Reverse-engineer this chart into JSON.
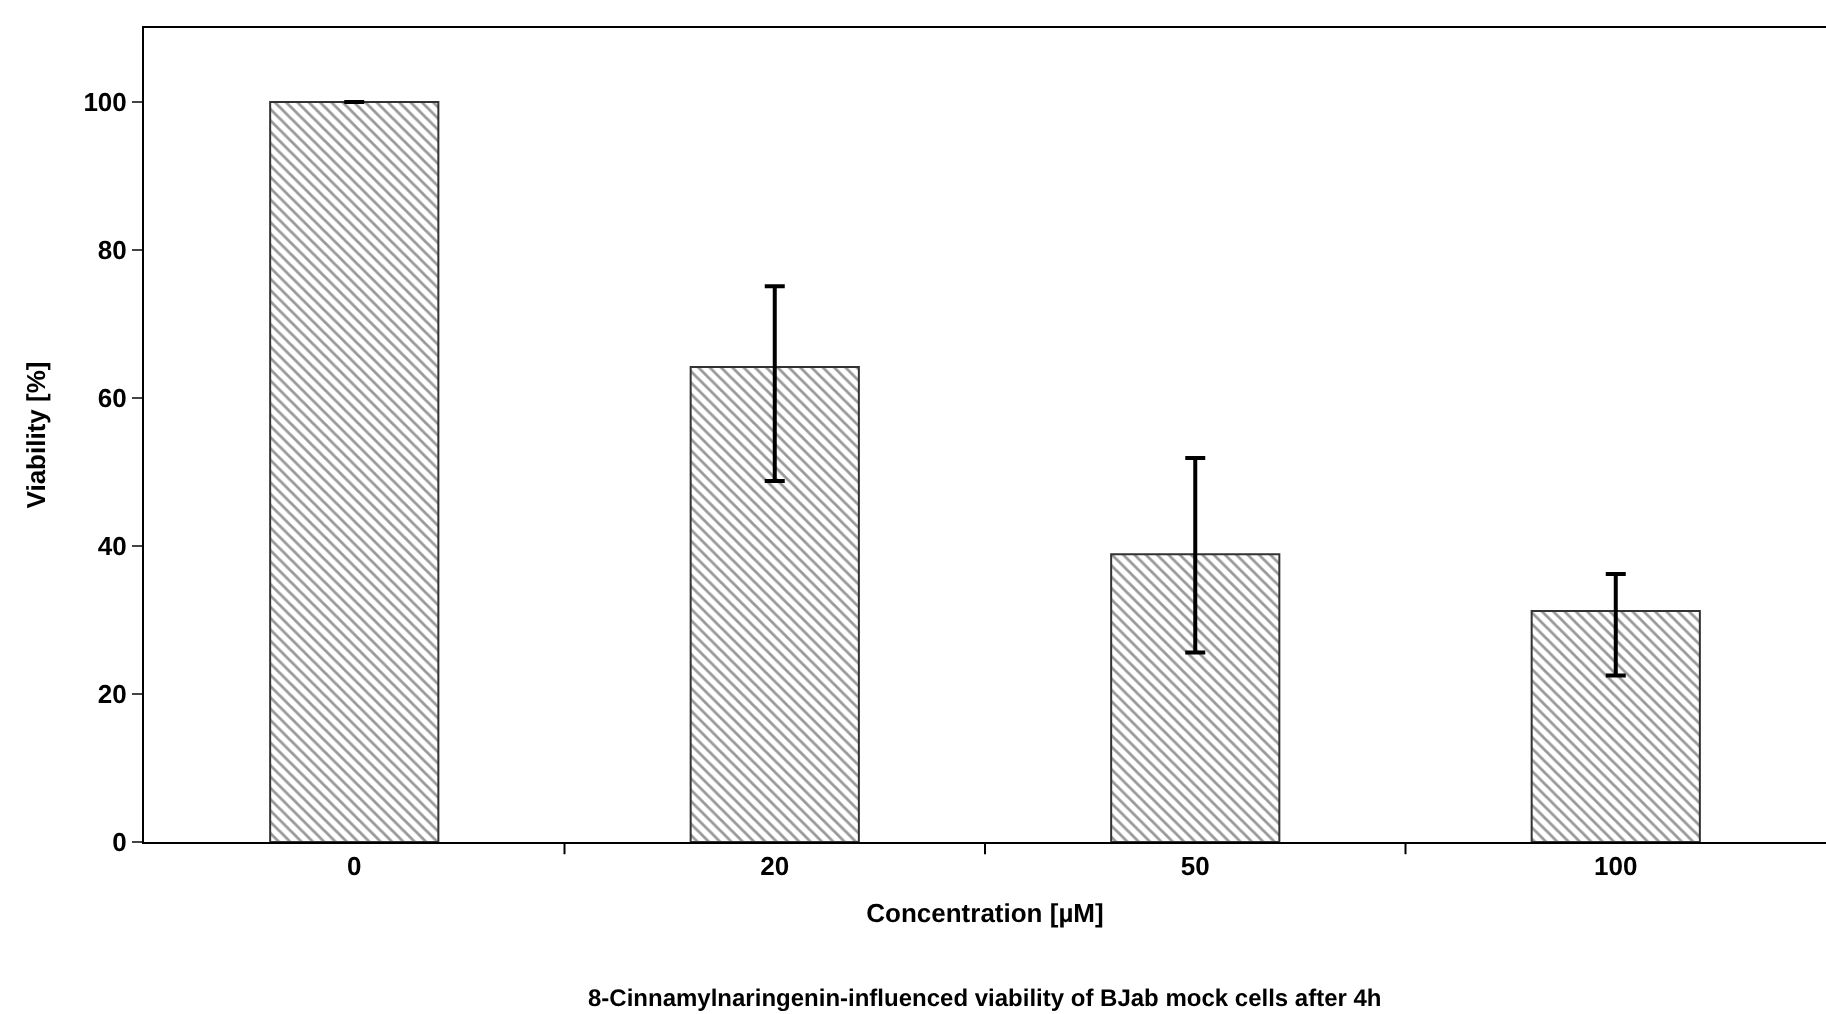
{
  "chart_data": {
    "type": "bar",
    "xlabel": "Concentration [µM]",
    "ylabel": "Viability [%]",
    "categories": [
      "0",
      "20",
      "50",
      "100"
    ],
    "values": [
      100,
      64.2,
      38.9,
      31.2
    ],
    "errors": [
      0,
      [
        48.8,
        75.1
      ],
      [
        25.6,
        51.9
      ],
      [
        22.5,
        36.2
      ]
    ],
    "color": "#333333",
    "ylim": [
      0,
      110
    ],
    "yticks": [
      0,
      20,
      40,
      60,
      80,
      100
    ],
    "annotations": [
      "8-Cinnamylnaringenin-influenced viability of BJab mock cells after 4h"
    ]
  }
}
